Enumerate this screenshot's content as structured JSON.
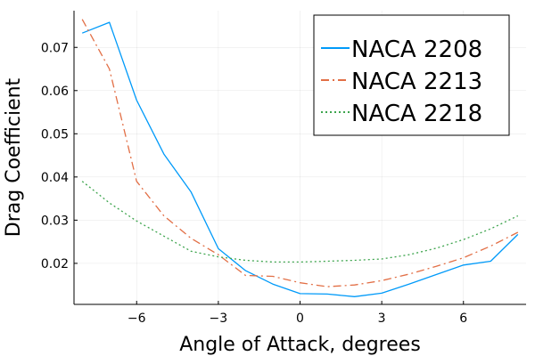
{
  "chart_data": {
    "type": "line",
    "xlabel": "Angle of Attack, degrees",
    "ylabel": "Drag Coefficient",
    "xlim": [
      -8.3,
      8.3
    ],
    "ylim": [
      0.0105,
      0.0785
    ],
    "xticks": [
      -6,
      -3,
      0,
      3,
      6
    ],
    "xtick_labels": [
      "−6",
      "−3",
      "0",
      "3",
      "6"
    ],
    "yticks": [
      0.02,
      0.03,
      0.04,
      0.05,
      0.06,
      0.07
    ],
    "ytick_labels": [
      "0.02",
      "0.03",
      "0.04",
      "0.05",
      "0.06",
      "0.07"
    ],
    "grid": true,
    "legend_position": "top-right",
    "series": [
      {
        "name": "NACA 2208",
        "color": "#009af9",
        "style": "solid",
        "x": [
          -8,
          -7,
          -6,
          -5,
          -4,
          -3,
          -2,
          -1,
          0,
          1,
          2,
          3,
          4,
          5,
          6,
          7,
          8
        ],
        "y": [
          0.0733,
          0.0758,
          0.0578,
          0.0453,
          0.0365,
          0.0234,
          0.0183,
          0.0152,
          0.013,
          0.0129,
          0.0123,
          0.0131,
          0.0152,
          0.0174,
          0.0196,
          0.0205,
          0.0267
        ]
      },
      {
        "name": "NACA 2213",
        "color": "#e26f46",
        "style": "dashdot",
        "x": [
          -8,
          -7,
          -6,
          -5,
          -4,
          -3,
          -2,
          -1,
          0,
          1,
          2,
          3,
          4,
          5,
          6,
          7,
          8
        ],
        "y": [
          0.0765,
          0.065,
          0.039,
          0.031,
          0.0258,
          0.022,
          0.0172,
          0.017,
          0.0155,
          0.0146,
          0.015,
          0.016,
          0.0175,
          0.0193,
          0.0213,
          0.024,
          0.0272
        ]
      },
      {
        "name": "NACA 2218",
        "color": "#3da44d",
        "style": "dotted",
        "x": [
          -8,
          -7,
          -6,
          -5,
          -4,
          -3,
          -2,
          -1,
          0,
          1,
          2,
          3,
          4,
          5,
          6,
          7,
          8
        ],
        "y": [
          0.039,
          0.034,
          0.0298,
          0.0263,
          0.0228,
          0.0215,
          0.0207,
          0.0203,
          0.0203,
          0.0205,
          0.0207,
          0.021,
          0.022,
          0.0235,
          0.0255,
          0.028,
          0.031
        ]
      }
    ]
  }
}
